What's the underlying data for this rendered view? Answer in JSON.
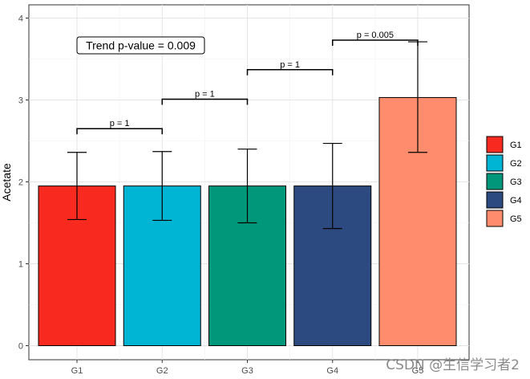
{
  "chart_data": {
    "type": "bar",
    "title": "",
    "xlabel": "",
    "ylabel": "Acetate",
    "ylim": [
      0,
      4.2
    ],
    "yticks": [
      0,
      1,
      2,
      3,
      4
    ],
    "grid": true,
    "categories": [
      "G1",
      "G2",
      "G3",
      "G4",
      "G5"
    ],
    "values": [
      1.95,
      1.95,
      1.95,
      1.95,
      3.03
    ],
    "error_low": [
      1.54,
      1.53,
      1.5,
      1.43,
      2.36
    ],
    "error_high": [
      2.36,
      2.37,
      2.4,
      2.47,
      3.71
    ],
    "colors": [
      "#f8291f",
      "#00b4d4",
      "#00977a",
      "#2c4a7f",
      "#ff8c6c"
    ],
    "legend": {
      "position": "right",
      "entries": [
        "G1",
        "G2",
        "G3",
        "G4",
        "G5"
      ]
    },
    "comparisons": [
      {
        "from": "G1",
        "to": "G2",
        "label": "p = 1",
        "y": 2.65
      },
      {
        "from": "G2",
        "to": "G3",
        "label": "p = 1",
        "y": 3.01
      },
      {
        "from": "G3",
        "to": "G4",
        "label": "p = 1",
        "y": 3.37
      },
      {
        "from": "G4",
        "to": "G5",
        "label": "p = 0.005",
        "y": 3.73
      }
    ],
    "annotation": {
      "text": "Trend p-value = 0.009"
    }
  },
  "watermark": "CSDN @生信学习者2"
}
